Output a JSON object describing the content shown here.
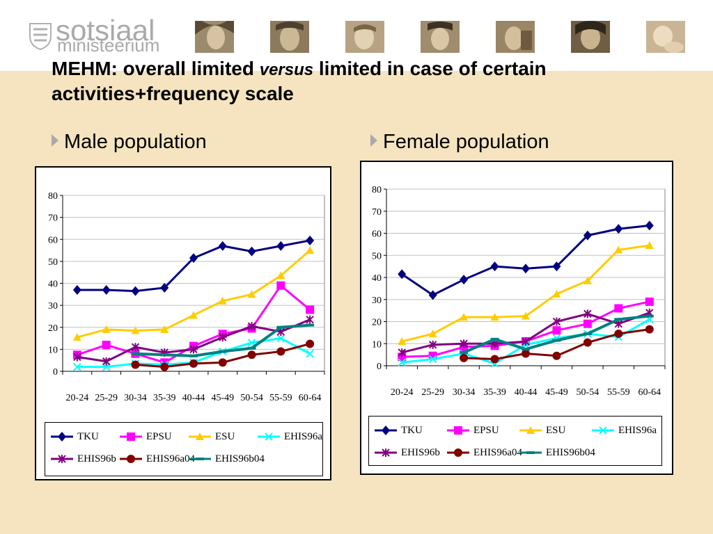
{
  "header": {
    "logo_word1": "sotsiaal",
    "logo_word2": "ministeerium",
    "title_a": "MEHM: overall limited ",
    "title_b": "versus",
    "title_c": " limited in case of certain activities+frequency scale"
  },
  "panels": {
    "left_label": "Male population",
    "right_label": "Female population"
  },
  "colors": {
    "header_bg": "#ffffff",
    "slide_bg": "#f5e4bf"
  },
  "series_styles": [
    {
      "name": "TKU",
      "color": "#000080",
      "marker": "diamond"
    },
    {
      "name": "EPSU",
      "color": "#ff00ff",
      "marker": "square"
    },
    {
      "name": "ESU",
      "color": "#ffcc00",
      "marker": "triangle"
    },
    {
      "name": "EHIS96a",
      "color": "#00ffff",
      "marker": "x"
    },
    {
      "name": "EHIS96b",
      "color": "#800080",
      "marker": "star"
    },
    {
      "name": "EHIS96a04",
      "color": "#800000",
      "marker": "circle"
    },
    {
      "name": "EHIS96b04",
      "color": "#008080",
      "marker": "dash"
    }
  ],
  "chart_data": [
    {
      "type": "line",
      "panel": "Male population",
      "categories": [
        "20-24",
        "25-29",
        "30-34",
        "35-39",
        "40-44",
        "45-49",
        "50-54",
        "55-59",
        "60-64"
      ],
      "ylim": [
        0,
        80
      ],
      "yticks": [
        0,
        10,
        20,
        30,
        40,
        50,
        60,
        70,
        80
      ],
      "grid": true,
      "legend": "bottom",
      "series": [
        {
          "name": "TKU",
          "values": [
            37,
            37,
            36.5,
            38,
            51.5,
            57,
            54.5,
            57,
            59.5
          ]
        },
        {
          "name": "EPSU",
          "values": [
            7.5,
            12,
            8,
            4,
            11.5,
            17,
            19.5,
            39,
            28
          ]
        },
        {
          "name": "ESU",
          "values": [
            15.5,
            19,
            18.5,
            19,
            25.5,
            32,
            35,
            43.5,
            55
          ]
        },
        {
          "name": "EHIS96a",
          "values": [
            2,
            2,
            3.5,
            3,
            4,
            9,
            13,
            15,
            8
          ]
        },
        {
          "name": "EHIS96b",
          "values": [
            6.5,
            4.5,
            11,
            8.5,
            10,
            15.5,
            20.5,
            18,
            23.5
          ]
        },
        {
          "name": "EHIS96a04",
          "values": [
            null,
            null,
            3,
            2,
            3.5,
            4,
            7.5,
            9,
            12.5
          ]
        },
        {
          "name": "EHIS96b04",
          "values": [
            null,
            null,
            8,
            7.5,
            7,
            9,
            10.5,
            20,
            21
          ]
        }
      ]
    },
    {
      "type": "line",
      "panel": "Female population",
      "categories": [
        "20-24",
        "25-29",
        "30-34",
        "35-39",
        "40-44",
        "45-49",
        "50-54",
        "55-59",
        "60-64"
      ],
      "ylim": [
        0,
        80
      ],
      "yticks": [
        0,
        10,
        20,
        30,
        40,
        50,
        60,
        70,
        80
      ],
      "grid": true,
      "legend": "bottom",
      "series": [
        {
          "name": "TKU",
          "values": [
            41.5,
            32,
            39,
            45,
            44,
            45,
            59,
            62,
            63.5
          ]
        },
        {
          "name": "EPSU",
          "values": [
            4,
            4.5,
            8.5,
            9,
            11,
            16,
            19,
            26,
            29
          ]
        },
        {
          "name": "ESU",
          "values": [
            11,
            14.5,
            22,
            22,
            22.5,
            32.5,
            38.5,
            52.5,
            54.5
          ]
        },
        {
          "name": "EHIS96a",
          "values": [
            1.5,
            3,
            5.5,
            1,
            9.5,
            12.5,
            14.5,
            13,
            21
          ]
        },
        {
          "name": "EHIS96b",
          "values": [
            6,
            9.5,
            10,
            10,
            11,
            20,
            23.5,
            19,
            24
          ]
        },
        {
          "name": "EHIS96a04",
          "values": [
            null,
            null,
            3.5,
            3,
            5.5,
            4.5,
            10.5,
            14.5,
            16.5
          ]
        },
        {
          "name": "EHIS96b04",
          "values": [
            null,
            null,
            6,
            12,
            7.5,
            11.5,
            14.5,
            21,
            22.5
          ]
        }
      ]
    }
  ]
}
